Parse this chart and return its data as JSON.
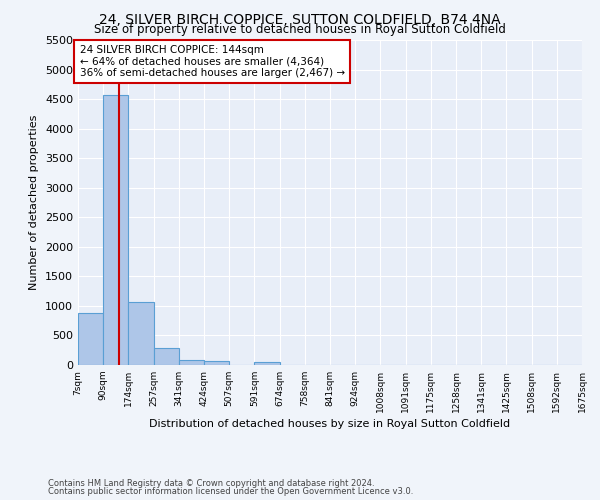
{
  "title": "24, SILVER BIRCH COPPICE, SUTTON COLDFIELD, B74 4NA",
  "subtitle": "Size of property relative to detached houses in Royal Sutton Coldfield",
  "xlabel": "Distribution of detached houses by size in Royal Sutton Coldfield",
  "ylabel": "Number of detached properties",
  "annotation_line1": "24 SILVER BIRCH COPPICE: 144sqm",
  "annotation_line2": "← 64% of detached houses are smaller (4,364)",
  "annotation_line3": "36% of semi-detached houses are larger (2,467) →",
  "bar_edges": [
    7,
    90,
    174,
    257,
    341,
    424,
    507,
    591,
    674,
    758,
    841,
    924,
    1008,
    1091,
    1175,
    1258,
    1341,
    1425,
    1508,
    1592,
    1675
  ],
  "bar_heights": [
    880,
    4570,
    1060,
    285,
    90,
    70,
    0,
    50,
    0,
    0,
    0,
    0,
    0,
    0,
    0,
    0,
    0,
    0,
    0,
    0
  ],
  "bar_color": "#aec6e8",
  "bar_edge_color": "#5a9fd4",
  "vline_x": 144,
  "vline_color": "#cc0000",
  "ylim": [
    0,
    5500
  ],
  "yticks": [
    0,
    500,
    1000,
    1500,
    2000,
    2500,
    3000,
    3500,
    4000,
    4500,
    5000,
    5500
  ],
  "tick_labels": [
    "7sqm",
    "90sqm",
    "174sqm",
    "257sqm",
    "341sqm",
    "424sqm",
    "507sqm",
    "591sqm",
    "674sqm",
    "758sqm",
    "841sqm",
    "924sqm",
    "1008sqm",
    "1091sqm",
    "1175sqm",
    "1258sqm",
    "1341sqm",
    "1425sqm",
    "1508sqm",
    "1592sqm",
    "1675sqm"
  ],
  "footer1": "Contains HM Land Registry data © Crown copyright and database right 2024.",
  "footer2": "Contains public sector information licensed under the Open Government Licence v3.0.",
  "bg_color": "#f0f4fa",
  "plot_bg_color": "#e8eef8"
}
